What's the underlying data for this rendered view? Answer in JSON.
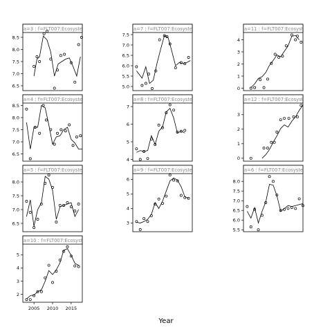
{
  "chart_data": {
    "type": "scatter",
    "layout": "faceted grid, 4 rows x 3 columns, scatter points with fitted line",
    "xlabel": "Year",
    "ylabel": "",
    "xlim": [
      2002,
      2018
    ],
    "x_ticks": [
      2005,
      2010,
      2015
    ],
    "grid": false,
    "panels": [
      {
        "strip_label": "a=3  :  f=FLT007:Ecosystem",
        "ylim": [
          6.3,
          8.7
        ],
        "y_ticks": [
          6.5,
          7.0,
          7.5,
          8.0,
          8.5
        ],
        "x": [
          2005,
          2005.8,
          2006.5,
          2007.7,
          2008.5,
          2009.5,
          2010.5,
          2011.3,
          2012.2,
          2013.2,
          2015,
          2016,
          2017,
          2017.8
        ],
        "y": [
          7.3,
          7.7,
          7.5,
          8.65,
          8.75,
          7.6,
          6.4,
          7.15,
          7.75,
          7.8,
          7.45,
          6.65,
          8.2,
          8.5
        ],
        "fit_x": [
          2005,
          2005.8,
          2006.5,
          2007.5,
          2008.5,
          2009.5,
          2010.5,
          2011.5,
          2012.5,
          2013.5,
          2014.5,
          2015.5,
          2016.5,
          2017.5
        ],
        "fit_y": [
          6.9,
          7.6,
          7.7,
          8.55,
          8.4,
          7.9,
          6.9,
          7.4,
          7.5,
          7.6,
          7.65,
          7.3,
          6.9,
          7.7
        ]
      },
      {
        "strip_label": "a=7  :  f=FLT007:Ecosystem",
        "ylim": [
          4.8,
          7.6
        ],
        "y_ticks": [
          5.0,
          5.5,
          6.0,
          6.5,
          7.0,
          7.5
        ],
        "x": [
          2003,
          2004.5,
          2005.5,
          2006.3,
          2007.2,
          2008.2,
          2009.2,
          2010.5,
          2011.2,
          2012,
          2013.5,
          2015,
          2016,
          2017
        ],
        "y": [
          5.95,
          5.05,
          5.15,
          5.6,
          4.9,
          5.75,
          7.25,
          7.45,
          7.4,
          7.05,
          5.9,
          6.15,
          6.1,
          6.4
        ],
        "fit_x": [
          2003,
          2004.5,
          2005.5,
          2006.5,
          2007.5,
          2008.5,
          2009.5,
          2010.5,
          2011.5,
          2012.5,
          2013.5,
          2014.5,
          2015.5,
          2016.5,
          2017.5
        ],
        "fit_y": [
          5.75,
          5.4,
          5.95,
          5.15,
          5.3,
          6.1,
          6.8,
          7.45,
          7.35,
          6.7,
          6.0,
          6.15,
          6.1,
          6.15,
          6.25
        ]
      },
      {
        "strip_label": "a=11  :  f=FLT007:Ecosystem",
        "ylim": [
          -0.2,
          4.6
        ],
        "y_ticks": [
          0,
          1,
          2,
          3,
          4
        ],
        "x": [
          2004,
          2005,
          2006.5,
          2007.5,
          2008.5,
          2009.5,
          2010.5,
          2011.5,
          2012.5,
          2013.5,
          2015,
          2016,
          2016.5,
          2017.5
        ],
        "y": [
          0.0,
          0.05,
          0.7,
          0.05,
          0.75,
          2.05,
          2.8,
          2.55,
          2.65,
          3.5,
          4.4,
          4.0,
          4.3,
          3.8
        ],
        "fit_x": [
          2004,
          2005,
          2006,
          2007,
          2008,
          2009,
          2010,
          2011,
          2012,
          2013,
          2014,
          2015,
          2016,
          2017
        ],
        "fit_y": [
          0.05,
          0.35,
          0.8,
          0.95,
          1.3,
          1.9,
          2.3,
          2.75,
          2.6,
          3.05,
          3.5,
          4.3,
          4.35,
          4.0
        ]
      },
      {
        "strip_label": "a=4  :  f=FLT007:Ecosystem",
        "ylim": [
          6.2,
          8.6
        ],
        "y_ticks": [
          6.5,
          7.0,
          7.5,
          8.0,
          8.5
        ],
        "x": [
          2003,
          2004,
          2005.3,
          2006.5,
          2007.5,
          2008.3,
          2009.5,
          2010.5,
          2011.3,
          2012.3,
          2013.5,
          2014.5,
          2015.5,
          2016.5,
          2017.5
        ],
        "y": [
          8.35,
          6.3,
          7.6,
          7.35,
          8.5,
          7.9,
          7.5,
          6.9,
          7.35,
          7.5,
          7.45,
          7.7,
          6.85,
          7.2,
          7.25
        ],
        "fit_x": [
          2003,
          2004,
          2005,
          2006,
          2007,
          2008,
          2009,
          2010,
          2011,
          2012,
          2013,
          2014,
          2015,
          2016,
          2017,
          2018
        ],
        "fit_y": [
          7.8,
          6.7,
          7.6,
          7.6,
          8.5,
          8.4,
          7.7,
          6.9,
          7.2,
          7.25,
          7.5,
          7.6,
          7.1,
          6.95,
          6.7,
          6.7
        ]
      },
      {
        "strip_label": "a=8  :  f=FLT007:Ecosystem",
        "ylim": [
          3.9,
          7.2
        ],
        "y_ticks": [
          4.0,
          5.0,
          6.0,
          7.0
        ],
        "x": [
          2003,
          2004,
          2005,
          2006,
          2007,
          2008,
          2009,
          2010,
          2011,
          2012,
          2013,
          2014,
          2015,
          2016
        ],
        "y": [
          4.6,
          4.0,
          4.45,
          4.05,
          5.15,
          4.85,
          5.95,
          5.8,
          6.65,
          7.1,
          6.8,
          5.55,
          5.6,
          5.65
        ],
        "fit_x": [
          2003,
          2004,
          2005,
          2006,
          2007,
          2008,
          2009,
          2010,
          2011,
          2012,
          2013,
          2014,
          2015,
          2016
        ],
        "fit_y": [
          4.4,
          4.5,
          4.45,
          4.5,
          5.35,
          4.85,
          5.6,
          5.85,
          6.7,
          6.9,
          6.35,
          5.5,
          5.6,
          5.5
        ]
      },
      {
        "strip_label": "a=12  :  f=FLT007:Ecosystem",
        "ylim": [
          -0.2,
          3.8
        ],
        "y_ticks": [
          0,
          1,
          2,
          3
        ],
        "x": [
          2004,
          2007.5,
          2008.5,
          2009.5,
          2010.3,
          2011,
          2012,
          2013,
          2014.2,
          2015.5,
          2016.5,
          2017.5
        ],
        "y": [
          0.0,
          0.7,
          0.7,
          1.1,
          1.1,
          1.8,
          2.65,
          2.75,
          2.75,
          2.85,
          2.85,
          3.65
        ],
        "fit_x": [
          2007,
          2008,
          2009,
          2010,
          2011,
          2012,
          2013,
          2014,
          2015,
          2016,
          2017,
          2018
        ],
        "fit_y": [
          0.0,
          0.25,
          0.6,
          1.1,
          1.55,
          2.05,
          2.3,
          2.15,
          2.55,
          2.85,
          3.3,
          3.65
        ]
      },
      {
        "strip_label": "a=5  :  f=FLT007:Ecosystem",
        "ylim": [
          6.2,
          8.3
        ],
        "y_ticks": [
          6.5,
          7.0,
          7.5,
          8.0
        ],
        "x": [
          2003,
          2004,
          2005,
          2006,
          2007,
          2008,
          2009,
          2010,
          2011,
          2012,
          2013,
          2014,
          2015,
          2016,
          2017
        ],
        "y": [
          7.3,
          6.9,
          6.35,
          6.65,
          7.2,
          7.95,
          8.25,
          7.8,
          6.55,
          7.15,
          7.15,
          7.25,
          7.1,
          6.95,
          7.2
        ],
        "fit_x": [
          2003,
          2004,
          2005,
          2006,
          2007,
          2008,
          2009,
          2010,
          2011,
          2012,
          2013,
          2014,
          2015,
          2016,
          2017
        ],
        "fit_y": [
          6.75,
          7.35,
          6.4,
          7.0,
          7.25,
          8.2,
          8.1,
          7.7,
          6.65,
          7.1,
          7.15,
          7.2,
          7.25,
          6.75,
          7.0
        ]
      },
      {
        "strip_label": "a=9  :  f=FLT007:Ecosystem",
        "ylim": [
          2.4,
          6.4
        ],
        "y_ticks": [
          3,
          4,
          5,
          6
        ],
        "x": [
          2003,
          2004,
          2005,
          2006,
          2007,
          2008,
          2009,
          2010,
          2011,
          2012,
          2013,
          2014,
          2015,
          2016,
          2017
        ],
        "y": [
          3.1,
          2.55,
          3.3,
          3.1,
          3.5,
          4.3,
          4.65,
          4.35,
          4.85,
          6.3,
          5.95,
          5.9,
          4.9,
          4.75,
          4.7
        ],
        "fit_x": [
          2003,
          2004,
          2005,
          2006,
          2007,
          2008,
          2009,
          2010,
          2011,
          2012,
          2013,
          2014,
          2015,
          2016,
          2017
        ],
        "fit_y": [
          3.05,
          3.0,
          3.1,
          3.25,
          3.6,
          4.4,
          4.0,
          4.5,
          5.2,
          5.9,
          6.1,
          5.95,
          5.5,
          4.8,
          4.7
        ]
      },
      {
        "strip_label": "a=6  :  f=FLT007:Ecosystem",
        "ylim": [
          5.4,
          8.4
        ],
        "y_ticks": [
          5.5,
          6.0,
          6.5,
          7.0,
          7.5,
          8.0
        ],
        "x": [
          2003,
          2004,
          2005,
          2006,
          2007,
          2008,
          2009,
          2010,
          2011,
          2012,
          2013,
          2014,
          2015,
          2016,
          2017,
          2018
        ],
        "y": [
          6.7,
          5.65,
          6.55,
          5.5,
          6.25,
          6.9,
          8.25,
          8.0,
          7.3,
          6.5,
          6.55,
          6.6,
          6.65,
          6.6,
          7.1,
          6.75
        ],
        "fit_x": [
          2003,
          2004,
          2005,
          2006,
          2007,
          2008,
          2009,
          2010,
          2011,
          2012,
          2013,
          2014,
          2015,
          2016,
          2017,
          2018
        ],
        "fit_y": [
          6.45,
          6.1,
          6.65,
          5.85,
          6.45,
          6.95,
          7.85,
          7.8,
          7.25,
          6.45,
          6.6,
          6.75,
          6.7,
          6.75,
          6.8,
          6.85
        ]
      },
      {
        "strip_label": "a=10  :  f=FLT007:Ecosystem",
        "ylim": [
          1.4,
          5.8
        ],
        "y_ticks": [
          2,
          3,
          4,
          5
        ],
        "x": [
          2003,
          2004,
          2005,
          2006,
          2007,
          2008,
          2009,
          2010,
          2011,
          2012,
          2013,
          2014,
          2015,
          2016,
          2017
        ],
        "y": [
          1.6,
          1.6,
          1.9,
          2.2,
          2.2,
          3.25,
          4.2,
          2.9,
          3.75,
          4.6,
          5.25,
          5.6,
          4.9,
          4.15,
          4.1
        ],
        "fit_x": [
          2003,
          2004,
          2005,
          2006,
          2007,
          2008,
          2009,
          2010,
          2011,
          2012,
          2013,
          2014,
          2015,
          2016,
          2017
        ],
        "fit_y": [
          1.65,
          1.9,
          1.95,
          2.2,
          2.35,
          3.0,
          3.8,
          3.5,
          3.85,
          4.4,
          5.35,
          5.45,
          4.95,
          4.35,
          4.2
        ]
      }
    ]
  },
  "page": {
    "xlabel": "Year"
  }
}
